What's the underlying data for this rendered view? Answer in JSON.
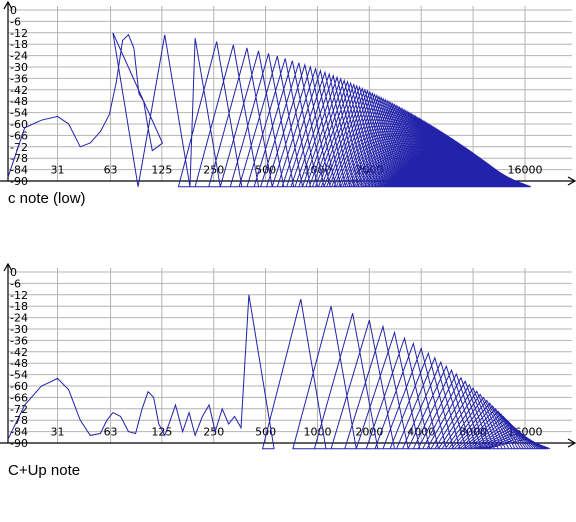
{
  "colors": {
    "grid": "#b4b4b4",
    "axis": "#000000",
    "trace": "#2222aa"
  },
  "chart_data": [
    {
      "type": "line",
      "title": "c note (low)",
      "xscale": "log",
      "ylim": [
        -90,
        0
      ],
      "xlim": [
        16,
        30000
      ],
      "grid": true,
      "yticks": [
        0,
        -6,
        -12,
        -18,
        -24,
        -30,
        -36,
        -42,
        -48,
        -54,
        -60,
        -66,
        -72,
        -78,
        -84,
        -90
      ],
      "xticks": [
        31,
        63,
        125,
        250,
        500,
        1000,
        2000,
        4000,
        8000,
        16000
      ],
      "harmonics": {
        "f0": 65,
        "peak_db": -12,
        "end_db": -88,
        "floor_db": -93,
        "count": 190
      },
      "low_curve": {
        "x": [
          16,
          20,
          25,
          31,
          36,
          42,
          48,
          55,
          62,
          68,
          74,
          80,
          86,
          92,
          98,
          104,
          110,
          118,
          126
        ],
        "y": [
          -88,
          -62,
          -58,
          -56,
          -60,
          -72,
          -70,
          -64,
          -55,
          -38,
          -16,
          -13,
          -20,
          -44,
          -48,
          -62,
          -74,
          -72,
          -70
        ]
      }
    },
    {
      "type": "line",
      "title": "C+Up note",
      "xscale": "log",
      "ylim": [
        -90,
        0
      ],
      "xlim": [
        16,
        30000
      ],
      "grid": true,
      "yticks": [
        0,
        -6,
        -12,
        -18,
        -24,
        -30,
        -36,
        -42,
        -48,
        -54,
        -60,
        -66,
        -72,
        -78,
        -84,
        -90
      ],
      "xticks": [
        31,
        63,
        125,
        250,
        500,
        1000,
        2000,
        4000,
        8000,
        16000
      ],
      "harmonics": {
        "f0": 400,
        "peak_db": -12,
        "end_db": -88,
        "floor_db": -93,
        "count": 40
      },
      "low_curve": {
        "x": [
          16,
          20,
          25,
          28,
          31,
          36,
          42,
          48,
          55,
          60,
          65,
          72,
          80,
          88,
          96,
          104,
          112,
          120,
          130,
          140,
          150,
          165,
          180,
          195,
          215,
          235,
          255,
          280,
          305,
          330,
          360
        ],
        "y": [
          -88,
          -70,
          -60,
          -58,
          -56,
          -62,
          -78,
          -86,
          -85,
          -78,
          -74,
          -76,
          -84,
          -85,
          -72,
          -63,
          -66,
          -80,
          -86,
          -78,
          -70,
          -84,
          -74,
          -86,
          -76,
          -70,
          -84,
          -72,
          -80,
          -76,
          -82
        ]
      }
    }
  ]
}
